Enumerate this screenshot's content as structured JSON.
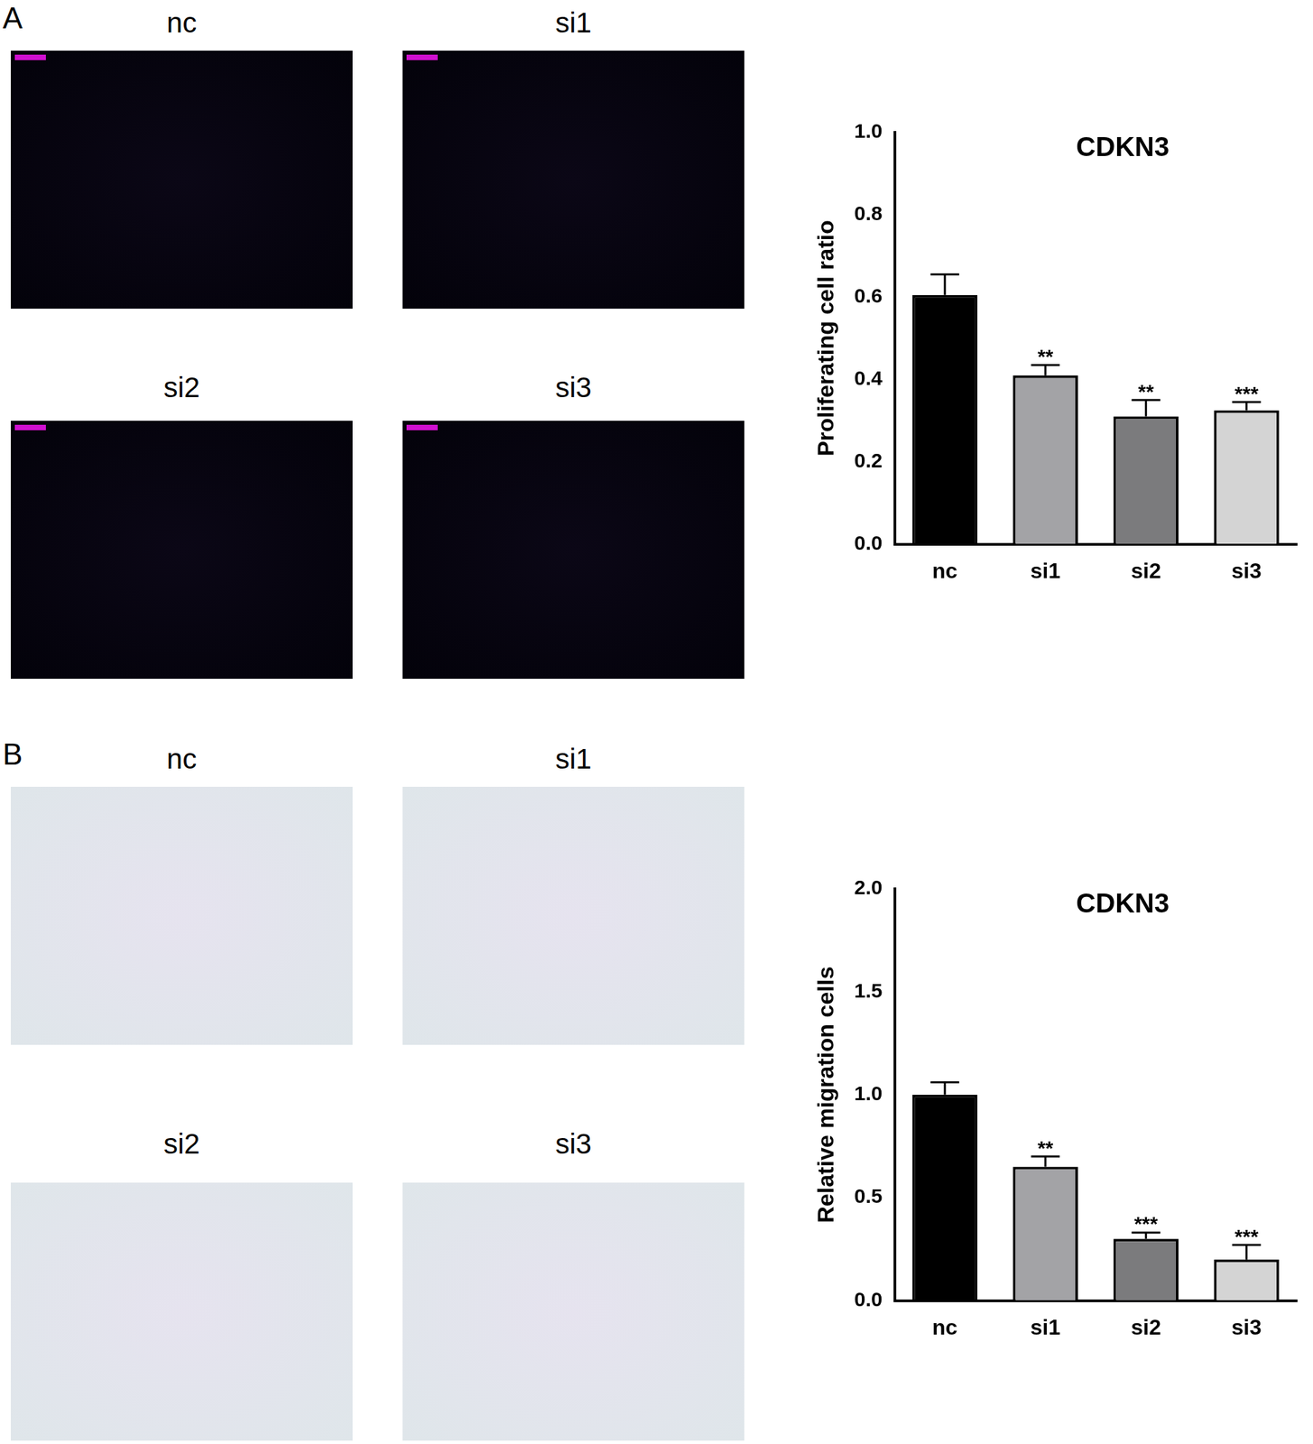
{
  "panels": [
    {
      "label": "A",
      "image_titles": [
        "nc",
        "si1",
        "si2",
        "si3"
      ]
    },
    {
      "label": "B",
      "image_titles": [
        "nc",
        "si1",
        "si2",
        "si3"
      ]
    }
  ],
  "chart_data": [
    {
      "type": "bar",
      "title": "CDKN3",
      "y_label": "Proliferating cell ratio",
      "categories": [
        "nc",
        "si1",
        "si2",
        "si3"
      ],
      "values": [
        0.605,
        0.41,
        0.31,
        0.325
      ],
      "errors": [
        0.05,
        0.025,
        0.04,
        0.02
      ],
      "annotations": [
        null,
        "**",
        "**",
        "***"
      ],
      "colors": [
        "#000000",
        "#a3a3a6",
        "#7b7b7d",
        "#d4d4d4"
      ],
      "ylim": [
        0,
        1.0
      ],
      "yticks": [
        {
          "value": 0,
          "label": "0.0"
        },
        0.2,
        0.4,
        0.6,
        0.8,
        {
          "value": 1.0,
          "label": "1.0"
        }
      ],
      "grid": false
    },
    {
      "type": "bar",
      "title": "CDKN3",
      "y_label": "Relative migration cells",
      "categories": [
        "nc",
        "si1",
        "si2",
        "si3"
      ],
      "values": [
        1.0,
        0.65,
        0.3,
        0.2
      ],
      "errors": [
        0.06,
        0.05,
        0.03,
        0.07
      ],
      "annotations": [
        null,
        "**",
        "***",
        "***"
      ],
      "colors": [
        "#000000",
        "#a3a3a6",
        "#7b7b7d",
        "#d4d4d4"
      ],
      "ylim": [
        0,
        2.0
      ],
      "yticks": [
        {
          "value": 0,
          "label": "0.0"
        },
        0.5,
        {
          "value": 1.0,
          "label": "1.0"
        },
        1.5,
        {
          "value": 2.0,
          "label": "2.0"
        }
      ],
      "grid": false
    }
  ]
}
